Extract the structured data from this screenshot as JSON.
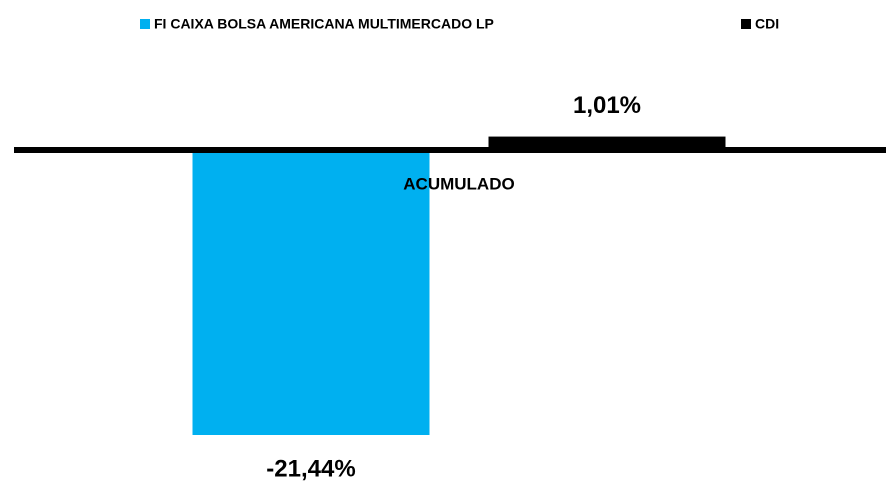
{
  "chart_data": {
    "type": "bar",
    "categories": [
      "ACUMULADO"
    ],
    "series": [
      {
        "name": "FI CAIXA BOLSA AMERICANA MULTIMERCADO LP",
        "color": "#00b0f0",
        "values": [
          -21.44
        ],
        "value_labels": [
          "-21,44%"
        ]
      },
      {
        "name": "CDI",
        "color": "#000000",
        "values": [
          1.01
        ],
        "value_labels": [
          "1,01%"
        ]
      }
    ],
    "legend": "top"
  }
}
